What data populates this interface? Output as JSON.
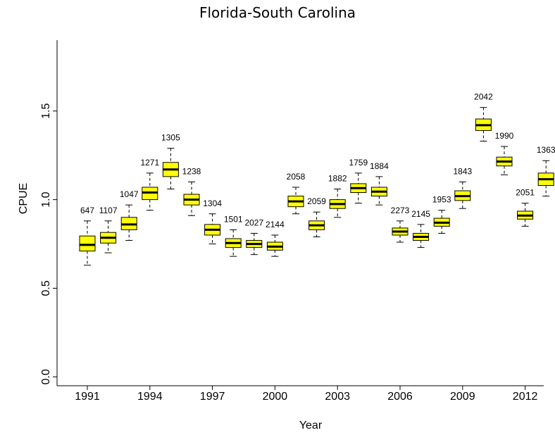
{
  "chart_data": {
    "type": "box",
    "title": "Florida-South Carolina",
    "xlabel": "Year",
    "ylabel": "CPUE",
    "ylim": [
      -0.05,
      1.9
    ],
    "yticks": [
      0.0,
      0.5,
      1.0,
      1.5
    ],
    "ytick_labels": [
      "0.0",
      "0.5",
      "1.0",
      "1.5"
    ],
    "xtick_labels": [
      "1991",
      "1994",
      "1997",
      "2000",
      "2003",
      "2006",
      "2009",
      "2012"
    ],
    "box_color": "#ffff00",
    "grid": false,
    "boxes": [
      {
        "year": 1991,
        "label": "647",
        "whisker_low": 0.63,
        "q1": 0.71,
        "median": 0.745,
        "q3": 0.795,
        "whisker_high": 0.88
      },
      {
        "year": 1992,
        "label": "1107",
        "whisker_low": 0.7,
        "q1": 0.755,
        "median": 0.785,
        "q3": 0.815,
        "whisker_high": 0.88
      },
      {
        "year": 1993,
        "label": "1047",
        "whisker_low": 0.77,
        "q1": 0.83,
        "median": 0.86,
        "q3": 0.9,
        "whisker_high": 0.97
      },
      {
        "year": 1994,
        "label": "1271",
        "whisker_low": 0.94,
        "q1": 1.0,
        "median": 1.04,
        "q3": 1.07,
        "whisker_high": 1.15
      },
      {
        "year": 1995,
        "label": "1305",
        "whisker_low": 1.06,
        "q1": 1.13,
        "median": 1.17,
        "q3": 1.21,
        "whisker_high": 1.29
      },
      {
        "year": 1996,
        "label": "1238",
        "whisker_low": 0.91,
        "q1": 0.97,
        "median": 1.0,
        "q3": 1.03,
        "whisker_high": 1.1
      },
      {
        "year": 1997,
        "label": "1304",
        "whisker_low": 0.75,
        "q1": 0.8,
        "median": 0.83,
        "q3": 0.86,
        "whisker_high": 0.92
      },
      {
        "year": 1998,
        "label": "1501",
        "whisker_low": 0.68,
        "q1": 0.73,
        "median": 0.755,
        "q3": 0.78,
        "whisker_high": 0.83
      },
      {
        "year": 1999,
        "label": "2027",
        "whisker_low": 0.69,
        "q1": 0.73,
        "median": 0.75,
        "q3": 0.77,
        "whisker_high": 0.81
      },
      {
        "year": 2000,
        "label": "2144",
        "whisker_low": 0.68,
        "q1": 0.715,
        "median": 0.735,
        "q3": 0.76,
        "whisker_high": 0.8
      },
      {
        "year": 2001,
        "label": "2058",
        "whisker_low": 0.92,
        "q1": 0.96,
        "median": 0.99,
        "q3": 1.02,
        "whisker_high": 1.07
      },
      {
        "year": 2002,
        "label": "2059",
        "whisker_low": 0.79,
        "q1": 0.83,
        "median": 0.855,
        "q3": 0.88,
        "whisker_high": 0.93
      },
      {
        "year": 2003,
        "label": "1882",
        "whisker_low": 0.9,
        "q1": 0.95,
        "median": 0.975,
        "q3": 1.0,
        "whisker_high": 1.06
      },
      {
        "year": 2004,
        "label": "1759",
        "whisker_low": 0.98,
        "q1": 1.04,
        "median": 1.065,
        "q3": 1.09,
        "whisker_high": 1.15
      },
      {
        "year": 2005,
        "label": "1884",
        "whisker_low": 0.97,
        "q1": 1.02,
        "median": 1.045,
        "q3": 1.07,
        "whisker_high": 1.13
      },
      {
        "year": 2006,
        "label": "2273",
        "whisker_low": 0.76,
        "q1": 0.8,
        "median": 0.82,
        "q3": 0.84,
        "whisker_high": 0.88
      },
      {
        "year": 2007,
        "label": "2145",
        "whisker_low": 0.73,
        "q1": 0.77,
        "median": 0.79,
        "q3": 0.81,
        "whisker_high": 0.86
      },
      {
        "year": 2008,
        "label": "1953",
        "whisker_low": 0.81,
        "q1": 0.85,
        "median": 0.87,
        "q3": 0.895,
        "whisker_high": 0.94
      },
      {
        "year": 2009,
        "label": "1843",
        "whisker_low": 0.95,
        "q1": 0.995,
        "median": 1.02,
        "q3": 1.05,
        "whisker_high": 1.1
      },
      {
        "year": 2010,
        "label": "2042",
        "whisker_low": 1.33,
        "q1": 1.39,
        "median": 1.42,
        "q3": 1.455,
        "whisker_high": 1.52
      },
      {
        "year": 2011,
        "label": "1990",
        "whisker_low": 1.14,
        "q1": 1.19,
        "median": 1.215,
        "q3": 1.24,
        "whisker_high": 1.3
      },
      {
        "year": 2012,
        "label": "2051",
        "whisker_low": 0.85,
        "q1": 0.89,
        "median": 0.91,
        "q3": 0.935,
        "whisker_high": 0.98
      },
      {
        "year": 2013,
        "label": "1363",
        "whisker_low": 1.02,
        "q1": 1.08,
        "median": 1.115,
        "q3": 1.15,
        "whisker_high": 1.22
      }
    ]
  }
}
